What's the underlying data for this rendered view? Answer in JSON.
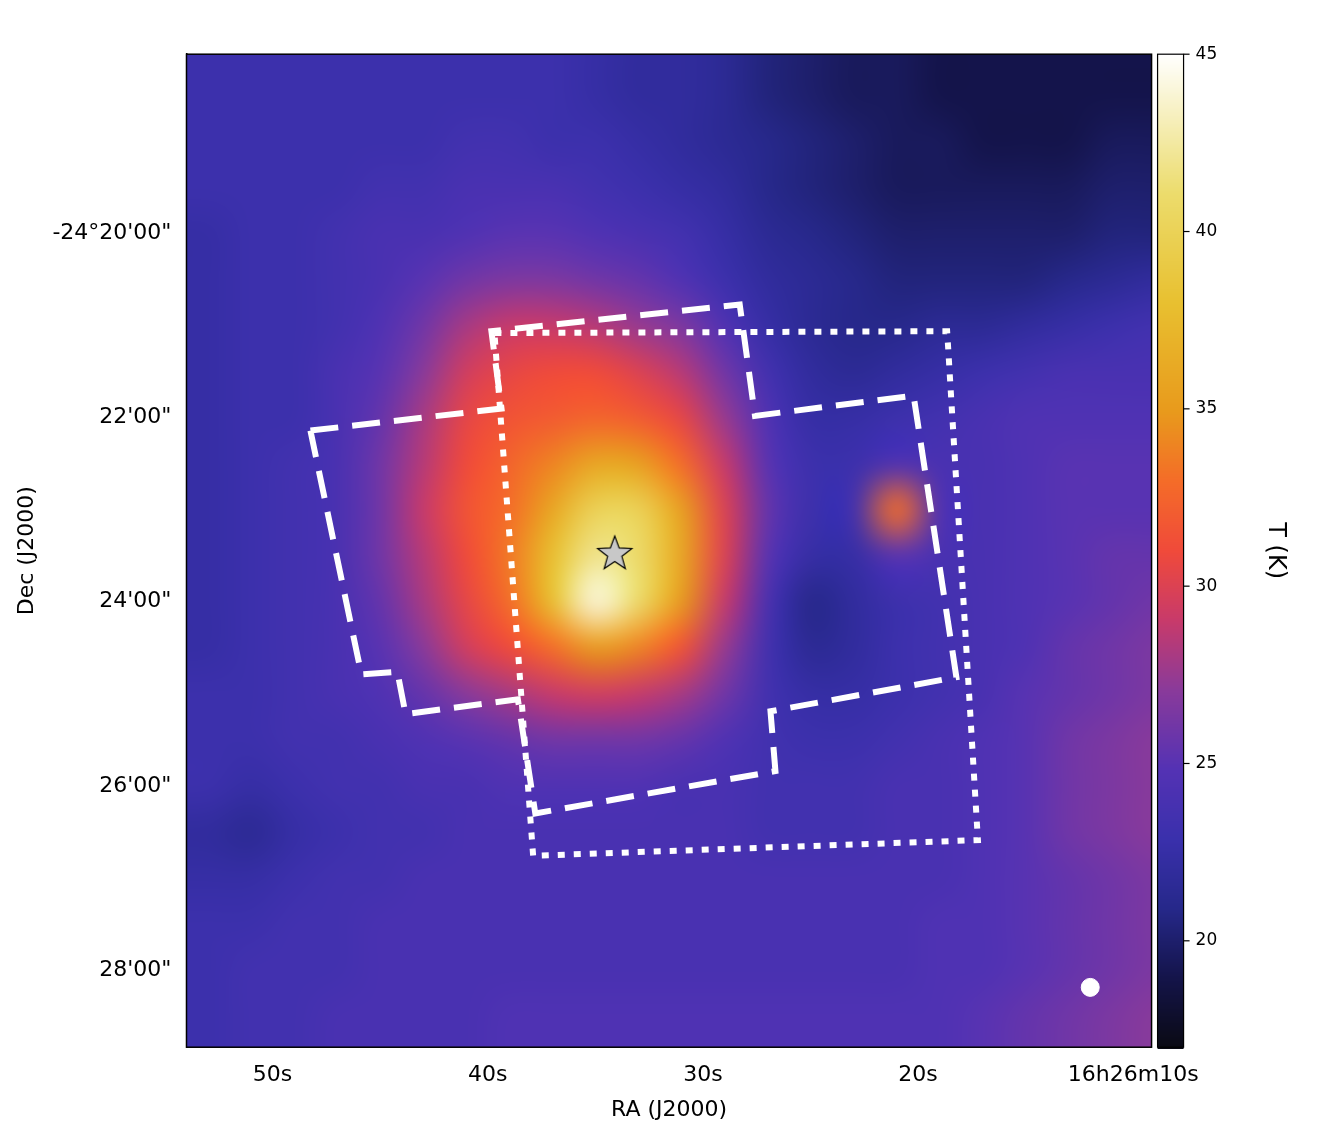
{
  "chart_data": {
    "type": "heatmap",
    "x_label": "RA (J2000)",
    "y_label": "Dec (J2000)",
    "xlim": [
      54.0,
      9.15
    ],
    "ylim": [
      18.05,
      28.84
    ],
    "xticks": [
      {
        "value": 50,
        "label": "50s"
      },
      {
        "value": 40,
        "label": "40s"
      },
      {
        "value": 30,
        "label": "30s"
      },
      {
        "value": 20,
        "label": "20s"
      },
      {
        "value": 10,
        "label": "16h26m10s"
      }
    ],
    "yticks": [
      {
        "value": 20,
        "label": "-24°20'00\""
      },
      {
        "value": 22,
        "label": "22'00\""
      },
      {
        "value": 24,
        "label": "24'00\""
      },
      {
        "value": 26,
        "label": "26'00\""
      },
      {
        "value": 28,
        "label": "28'00\""
      }
    ],
    "grid": false,
    "colorbar": {
      "label": "T (K)",
      "clim": [
        17,
        45
      ],
      "ticks": [
        20,
        25,
        30,
        35,
        40,
        45
      ]
    },
    "cells": {
      "x": [
        53,
        51,
        49,
        47,
        45,
        43,
        41,
        39,
        37,
        35,
        33,
        31,
        29,
        27,
        25,
        23,
        21,
        19,
        17,
        15,
        13,
        11,
        9
      ],
      "y": [
        18,
        18.5,
        19,
        19.5,
        20,
        20.5,
        21,
        21.5,
        22,
        22.5,
        23,
        23.5,
        24,
        24.5,
        25,
        25.5,
        26,
        26.5,
        27,
        27.5,
        28,
        28.5,
        29
      ],
      "values": [
        [
          23,
          23,
          23,
          23,
          23,
          23,
          23,
          23,
          23,
          22.5,
          22,
          22,
          21.5,
          20.5,
          20,
          19.5,
          19.5,
          19,
          19,
          19,
          19,
          19,
          19
        ],
        [
          23,
          23,
          23,
          23,
          23,
          23,
          23,
          23,
          23,
          22.5,
          22,
          22,
          21.5,
          20.5,
          20,
          19.5,
          19.5,
          19,
          19,
          19,
          19,
          19,
          19
        ],
        [
          23,
          23,
          23,
          23,
          23,
          23,
          23.5,
          23.5,
          23,
          23,
          22.5,
          22,
          21.5,
          21,
          20.5,
          20,
          19.5,
          19.5,
          19,
          19,
          19,
          19.5,
          19.5
        ],
        [
          23,
          23,
          23,
          23,
          23.5,
          23.5,
          24,
          24,
          24,
          23.5,
          23,
          22.5,
          22,
          21,
          20.5,
          20,
          19.5,
          19.5,
          19.5,
          19.5,
          19.5,
          20,
          20
        ],
        [
          22.5,
          23,
          23,
          23.5,
          24,
          24,
          24.5,
          25,
          25,
          24.5,
          24,
          23.5,
          22.5,
          21.5,
          21,
          20.5,
          20,
          20,
          20,
          20,
          20,
          20.5,
          20.5
        ],
        [
          22.5,
          23,
          23,
          23.5,
          24,
          25,
          26,
          26.5,
          26.5,
          26,
          25.5,
          24.5,
          23,
          22,
          21.5,
          21,
          20.5,
          20.5,
          20.5,
          20.5,
          21,
          21.5,
          22
        ],
        [
          22.5,
          23,
          23,
          23.5,
          24.5,
          26,
          28,
          29,
          29,
          28.5,
          27.5,
          26.5,
          24.5,
          22.5,
          21.5,
          21,
          21,
          21.5,
          21.5,
          22,
          22.5,
          23,
          23.5
        ],
        [
          22.5,
          23,
          23,
          24,
          25,
          27,
          29.5,
          30.5,
          31,
          31,
          30,
          28.5,
          26,
          23.5,
          22,
          21.5,
          22,
          22.5,
          23,
          23.5,
          24,
          24,
          24
        ],
        [
          22.5,
          23,
          23,
          24,
          25.5,
          28,
          30.5,
          31.5,
          32,
          32.5,
          32,
          30.5,
          27.5,
          24.5,
          22.5,
          22.5,
          23,
          23.5,
          24,
          24.5,
          24.5,
          24.5,
          24.5
        ],
        [
          22.5,
          23,
          23.5,
          24,
          26,
          28.5,
          31,
          32.5,
          34,
          36,
          35.5,
          33,
          29,
          25,
          23,
          23,
          24.5,
          24,
          24,
          24.5,
          25,
          25,
          25
        ],
        [
          22.5,
          23,
          23.5,
          24,
          26,
          29,
          31.5,
          33,
          36,
          40,
          40,
          35.5,
          30,
          25.5,
          23,
          23.5,
          33,
          24.5,
          24,
          24.5,
          25,
          25,
          25
        ],
        [
          22.5,
          23,
          23.5,
          24,
          26,
          28.5,
          31,
          33.5,
          38,
          42,
          41,
          36,
          30,
          25,
          22.5,
          22.5,
          25,
          24,
          24,
          24.5,
          25,
          25.5,
          25.5
        ],
        [
          22.5,
          23,
          23.5,
          24,
          25.5,
          28,
          30.5,
          33,
          38,
          44,
          41,
          35,
          29,
          24,
          21,
          22,
          23,
          23.5,
          24,
          24.5,
          25,
          25.5,
          26
        ],
        [
          22.5,
          23,
          23.5,
          24,
          25,
          27,
          29.5,
          31,
          33,
          35,
          34,
          31.5,
          27.5,
          23.5,
          21.5,
          22,
          23,
          23.5,
          24,
          24.5,
          25.5,
          26,
          26.5
        ],
        [
          23,
          23,
          23.5,
          24,
          24.5,
          25.5,
          27,
          28,
          29,
          29.5,
          29,
          28,
          26,
          23.5,
          22.5,
          22.5,
          23,
          23.5,
          24,
          25,
          25.5,
          26,
          26.5
        ],
        [
          23,
          23,
          23.5,
          23.5,
          24,
          24.5,
          25,
          25.5,
          26,
          26,
          26,
          25.5,
          24.5,
          23.5,
          23,
          23,
          23.5,
          24,
          24.5,
          25,
          26,
          26.5,
          27
        ],
        [
          23,
          22.5,
          23,
          23.5,
          23.5,
          24,
          24,
          24.5,
          24.5,
          24.5,
          24.5,
          24,
          24,
          23.5,
          23.5,
          23.5,
          24,
          24,
          24.5,
          25,
          26,
          26.5,
          27
        ],
        [
          22,
          21.5,
          22.5,
          23,
          23.5,
          23.5,
          24,
          24,
          24,
          24,
          24,
          24,
          24,
          23.5,
          23.5,
          23.5,
          24,
          24,
          24.5,
          25,
          26,
          26.5,
          27
        ],
        [
          22.5,
          22.5,
          23,
          23.5,
          23.5,
          24,
          24,
          24,
          24,
          24,
          24,
          24,
          24,
          24,
          24,
          24,
          24,
          24,
          24.5,
          25,
          25.5,
          26,
          26.5
        ],
        [
          23,
          23,
          23.5,
          23.5,
          24,
          24,
          24,
          24,
          24,
          24,
          24,
          24,
          24,
          24,
          24,
          24,
          24,
          24.5,
          24.5,
          25,
          25.5,
          26,
          26.5
        ],
        [
          23,
          23.5,
          23.5,
          23.5,
          24,
          24,
          24,
          24,
          24,
          24,
          24,
          24,
          24,
          24,
          24,
          24,
          24,
          24.5,
          24.5,
          25,
          25.5,
          26,
          26.5
        ],
        [
          23,
          23.5,
          23.5,
          24,
          24,
          24,
          24,
          24.5,
          24.5,
          24.5,
          24.5,
          24.5,
          24.5,
          24.5,
          24.5,
          24.5,
          24.5,
          24.5,
          25,
          25.5,
          26,
          26.5,
          27
        ],
        [
          23,
          23.5,
          23.5,
          24,
          24,
          24,
          24,
          24.5,
          24.5,
          24.5,
          24.5,
          24.5,
          24.5,
          24.5,
          24.5,
          24.5,
          24.5,
          24.5,
          25,
          25.5,
          26,
          26.5,
          27
        ]
      ]
    },
    "regions": [
      {
        "line_style": "dashed",
        "color": "#ffffff",
        "x": [
          48.24,
          39.36,
          39.83,
          28.29,
          27.58,
          20.21,
          18.22,
          26.86,
          26.63,
          37.79,
          38.6,
          43.82,
          44.2,
          45.87
        ],
        "y": [
          22.14,
          21.9,
          21.06,
          20.77,
          21.98,
          21.76,
          24.82,
          25.19,
          25.84,
          26.3,
          25.06,
          25.22,
          24.76,
          24.79
        ]
      },
      {
        "line_style": "dotted",
        "color": "#ffffff",
        "x": [
          39.69,
          18.65,
          17.22,
          37.89
        ],
        "y": [
          21.08,
          21.06,
          26.59,
          26.76
        ]
      }
    ],
    "markers": [
      {
        "marker": "star",
        "color": "#c8c8c8",
        "x": [
          34.1
        ],
        "y": [
          23.47
        ]
      },
      {
        "marker": "circle",
        "color": "#ffffff",
        "x": [
          12.0
        ],
        "y": [
          28.19
        ]
      }
    ]
  }
}
